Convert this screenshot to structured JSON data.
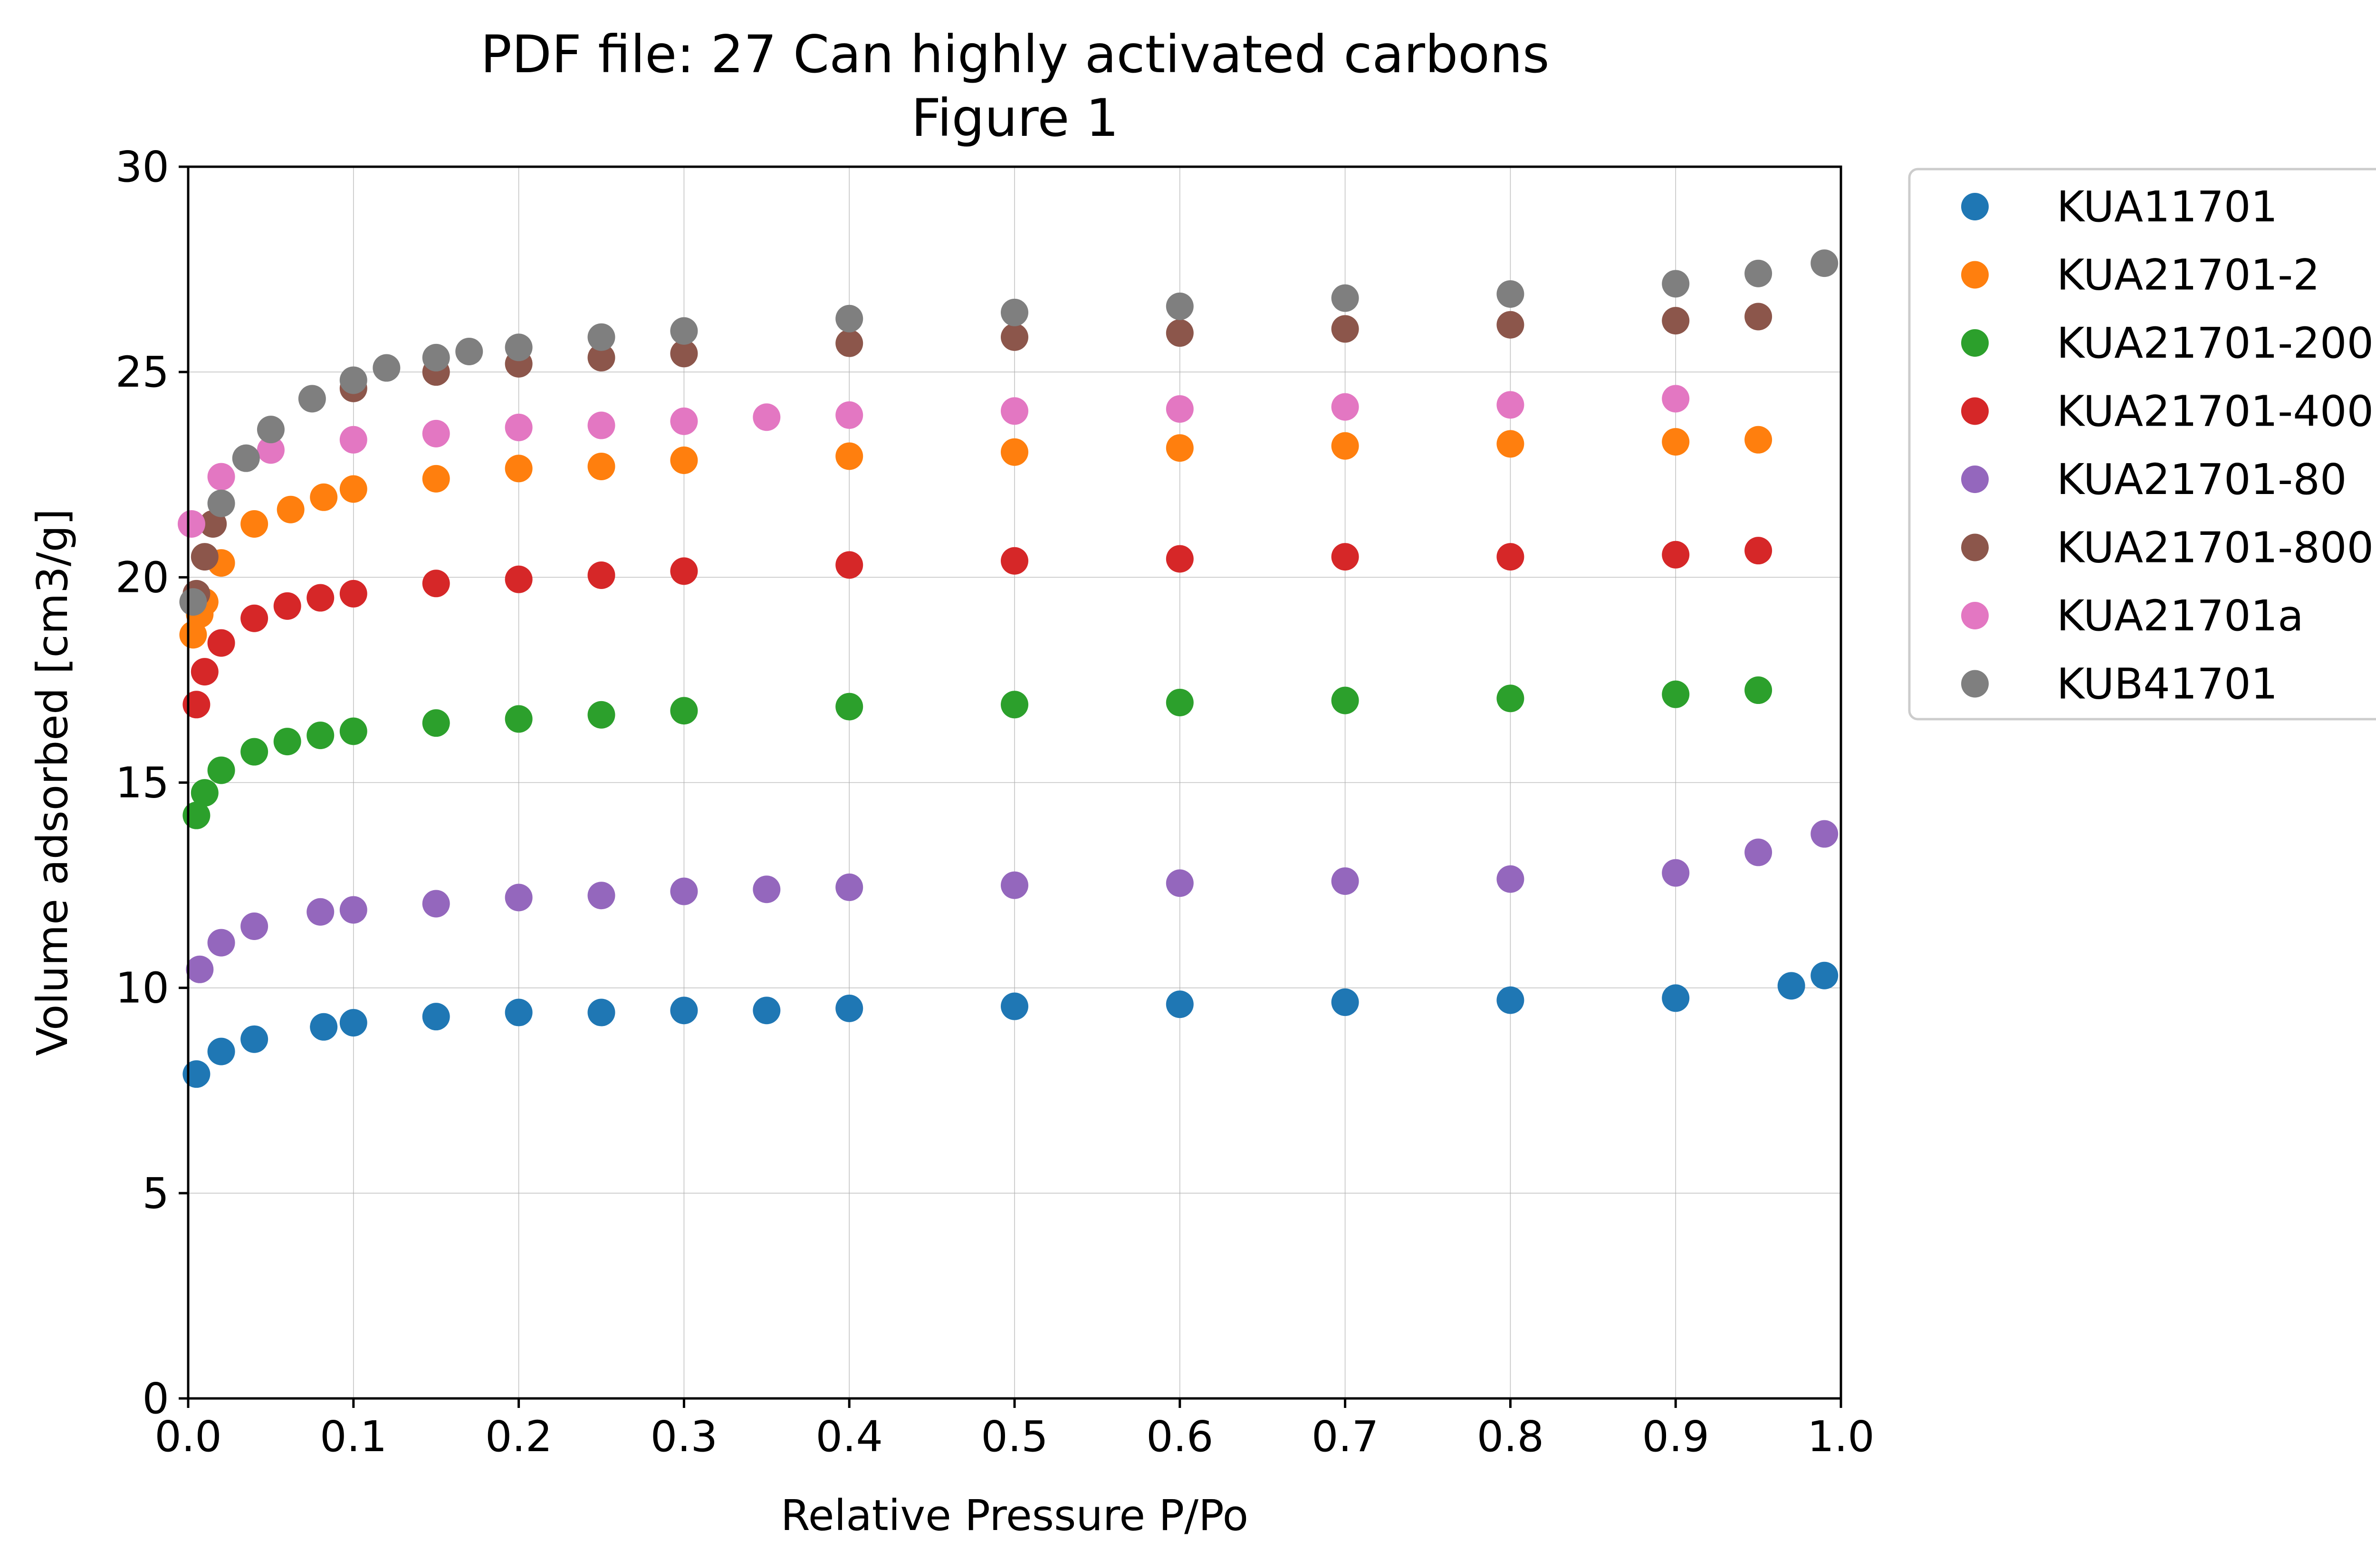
{
  "chart_data": {
    "type": "scatter",
    "title": "PDF file: 27 Can highly activated carbons",
    "subtitle": "Figure 1",
    "xlabel": "Relative Pressure P/Po",
    "ylabel": "Volume adsorbed [cm3/g]",
    "xlim": [
      0.0,
      1.0
    ],
    "ylim": [
      0,
      30
    ],
    "xticks": [
      "0.0",
      "0.1",
      "0.2",
      "0.3",
      "0.4",
      "0.5",
      "0.6",
      "0.7",
      "0.8",
      "0.9",
      "1.0"
    ],
    "yticks": [
      "0",
      "5",
      "10",
      "15",
      "20",
      "25",
      "30"
    ],
    "grid": true,
    "legend_position": "outside-upper-right",
    "series": [
      {
        "name": "KUA11701",
        "color": "#1f77b4",
        "x": [
          0.005,
          0.02,
          0.04,
          0.082,
          0.1,
          0.15,
          0.2,
          0.25,
          0.3,
          0.35,
          0.4,
          0.5,
          0.6,
          0.7,
          0.8,
          0.9,
          0.97,
          0.99
        ],
        "y": [
          7.9,
          8.45,
          8.75,
          9.05,
          9.15,
          9.3,
          9.4,
          9.4,
          9.45,
          9.45,
          9.5,
          9.55,
          9.6,
          9.65,
          9.7,
          9.75,
          10.05,
          10.3
        ]
      },
      {
        "name": "KUA21701-2",
        "color": "#ff7f0e",
        "x": [
          0.003,
          0.007,
          0.01,
          0.02,
          0.04,
          0.062,
          0.082,
          0.1,
          0.15,
          0.2,
          0.25,
          0.3,
          0.4,
          0.5,
          0.6,
          0.7,
          0.8,
          0.9,
          0.95
        ],
        "y": [
          18.6,
          19.1,
          19.4,
          20.35,
          21.3,
          21.65,
          21.95,
          22.15,
          22.4,
          22.65,
          22.7,
          22.85,
          22.95,
          23.05,
          23.15,
          23.2,
          23.25,
          23.3,
          23.35
        ]
      },
      {
        "name": "KUA21701-200",
        "color": "#2ca02c",
        "x": [
          0.005,
          0.01,
          0.02,
          0.04,
          0.06,
          0.08,
          0.1,
          0.15,
          0.2,
          0.25,
          0.3,
          0.4,
          0.5,
          0.6,
          0.7,
          0.8,
          0.9,
          0.95
        ],
        "y": [
          14.2,
          14.75,
          15.3,
          15.75,
          16.0,
          16.15,
          16.25,
          16.45,
          16.55,
          16.65,
          16.75,
          16.85,
          16.9,
          16.95,
          17.0,
          17.05,
          17.15,
          17.25
        ]
      },
      {
        "name": "KUA21701-400",
        "color": "#d62728",
        "x": [
          0.005,
          0.01,
          0.02,
          0.04,
          0.06,
          0.08,
          0.1,
          0.15,
          0.2,
          0.25,
          0.3,
          0.4,
          0.5,
          0.6,
          0.7,
          0.8,
          0.9,
          0.95
        ],
        "y": [
          16.9,
          17.7,
          18.4,
          19.0,
          19.3,
          19.5,
          19.6,
          19.85,
          19.95,
          20.05,
          20.15,
          20.3,
          20.4,
          20.45,
          20.5,
          20.5,
          20.55,
          20.65
        ]
      },
      {
        "name": "KUA21701-80",
        "color": "#9467bd",
        "x": [
          0.007,
          0.02,
          0.04,
          0.08,
          0.1,
          0.15,
          0.2,
          0.25,
          0.3,
          0.35,
          0.4,
          0.5,
          0.6,
          0.7,
          0.8,
          0.9,
          0.95,
          0.99
        ],
        "y": [
          10.45,
          11.1,
          11.5,
          11.85,
          11.9,
          12.05,
          12.2,
          12.25,
          12.35,
          12.4,
          12.45,
          12.5,
          12.55,
          12.6,
          12.65,
          12.8,
          13.3,
          13.75
        ]
      },
      {
        "name": "KUA21701-800",
        "color": "#8c564b",
        "x": [
          0.005,
          0.01,
          0.015,
          0.1,
          0.15,
          0.2,
          0.25,
          0.3,
          0.4,
          0.5,
          0.6,
          0.7,
          0.8,
          0.9,
          0.95
        ],
        "y": [
          19.6,
          20.5,
          21.3,
          24.6,
          25.0,
          25.2,
          25.35,
          25.45,
          25.7,
          25.85,
          25.95,
          26.05,
          26.15,
          26.25,
          26.35
        ]
      },
      {
        "name": "KUA21701a",
        "color": "#e377c2",
        "x": [
          0.002,
          0.02,
          0.05,
          0.1,
          0.15,
          0.2,
          0.25,
          0.3,
          0.35,
          0.4,
          0.5,
          0.6,
          0.7,
          0.8,
          0.9
        ],
        "y": [
          21.3,
          22.45,
          23.1,
          23.35,
          23.5,
          23.65,
          23.7,
          23.8,
          23.9,
          23.95,
          24.05,
          24.1,
          24.15,
          24.2,
          24.35
        ]
      },
      {
        "name": "KUB41701",
        "color": "#7f7f7f",
        "x": [
          0.003,
          0.02,
          0.035,
          0.05,
          0.075,
          0.1,
          0.12,
          0.15,
          0.17,
          0.2,
          0.25,
          0.3,
          0.4,
          0.5,
          0.6,
          0.7,
          0.8,
          0.9,
          0.95,
          0.99
        ],
        "y": [
          19.4,
          21.8,
          22.9,
          23.6,
          24.35,
          24.8,
          25.1,
          25.35,
          25.5,
          25.6,
          25.85,
          26.0,
          26.3,
          26.45,
          26.6,
          26.8,
          26.9,
          27.15,
          27.4,
          27.65
        ]
      }
    ]
  }
}
